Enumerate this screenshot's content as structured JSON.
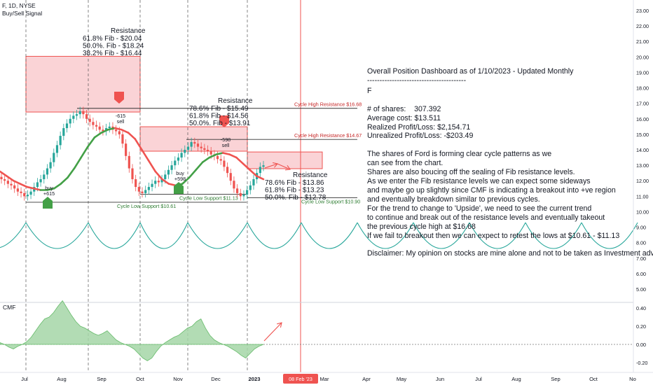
{
  "header": {
    "symbol": "F, 1D, NYSE",
    "indicator": "Buy/Sell Signal"
  },
  "cmf_label": "CMF",
  "colors": {
    "up": "#26a69a",
    "down": "#ef5350",
    "wave_up": "#43a047",
    "wave_down": "#ef5350",
    "zone": "#f8c4c8",
    "cycle": "#26a69a",
    "cmf_fill": "#a5d6a7",
    "today_line": "#ef5350"
  },
  "chart_data": [
    {
      "type": "candlestick",
      "y_axis_ticks": [
        "23.00",
        "22.00",
        "21.00",
        "20.00",
        "19.00",
        "18.00",
        "17.00",
        "16.00",
        "15.00",
        "14.00",
        "13.00",
        "12.00",
        "11.00",
        "10.00",
        "9.00",
        "8.00",
        "7.00",
        "6.00",
        "5.00"
      ],
      "ylim": [
        4.5,
        23.5
      ],
      "x_axis_ticks": [
        "Jul",
        "Aug",
        "Sep",
        "Oct",
        "Nov",
        "Dec",
        "2023",
        "Mar",
        "Apr",
        "May",
        "Jun",
        "Jul",
        "Aug",
        "Sep",
        "Oct",
        "No"
      ],
      "date_label": "08 Feb '23",
      "closes": [
        12.1,
        12.0,
        11.8,
        11.7,
        11.5,
        11.3,
        11.2,
        11.0,
        11.1,
        11.3,
        11.6,
        11.9,
        12.1,
        12.4,
        12.8,
        13.2,
        13.8,
        14.3,
        14.9,
        15.4,
        15.7,
        16.0,
        16.2,
        16.3,
        16.5,
        16.3,
        16.0,
        15.8,
        15.6,
        15.5,
        15.3,
        15.2,
        15.4,
        15.5,
        15.3,
        15.2,
        15.0,
        14.4,
        13.6,
        12.8,
        12.1,
        11.6,
        11.3,
        11.2,
        11.4,
        11.6,
        11.8,
        12.0,
        11.9,
        12.1,
        12.4,
        12.7,
        13.0,
        13.3,
        13.5,
        13.8,
        14.0,
        14.2,
        14.5,
        14.4,
        14.2,
        14.1,
        14.0,
        13.9,
        13.7,
        13.6,
        13.4,
        13.3,
        12.9,
        12.5,
        12.0,
        11.5,
        11.2,
        11.0,
        11.1,
        11.4,
        11.7,
        12.1,
        12.5,
        12.9,
        13.0
      ],
      "wave": [
        12.6,
        12.3,
        12.0,
        11.8,
        11.6,
        11.5,
        11.4,
        11.4,
        11.5,
        11.8,
        12.2,
        12.8,
        13.5,
        14.2,
        14.8,
        15.1,
        15.3,
        15.4,
        15.3,
        15.1,
        14.7,
        14.0,
        13.3,
        12.6,
        12.1,
        11.8,
        11.7,
        11.8,
        12.2,
        12.7,
        13.2,
        13.5,
        13.7,
        13.8,
        13.7,
        13.5,
        13.1,
        12.7,
        12.3,
        12.1
      ],
      "resistance_zones": [
        {
          "fibs": [
            "61.8%   Fib - $20.04",
            "50.0%.   Fib - $18.24",
            "38.2%   Fib - $16.44"
          ],
          "title": "Resistance",
          "top": 20.04,
          "bottom": 16.44
        },
        {
          "fibs": [
            "78.6%   Fib - $15.49",
            "61.8%   Fib - $14.56",
            "50.0%.   Fib - $13.91"
          ],
          "title": "Resistance",
          "top": 15.49,
          "bottom": 13.91
        },
        {
          "fibs": [
            "78.6%   Fib - $13.86",
            "61.8%   Fib - $13.23",
            "50.0%.   Fib - $12.78"
          ],
          "title": "Resistance",
          "top": 13.86,
          "bottom": 12.78
        }
      ],
      "levels": [
        {
          "label": "Cycle High Resistance $16.68",
          "value": 16.68
        },
        {
          "label": "Cycle High Resistance $14.67",
          "value": 14.67
        },
        {
          "label": "Cycle Low Support $10.61",
          "value": 10.61
        },
        {
          "label": "Cycle Low Support $11.13",
          "value": 11.13
        },
        {
          "label": "Cycle Low Support $10.90",
          "value": 10.9
        }
      ],
      "signals": [
        {
          "type": "buy",
          "text": [
            "buy",
            "+615"
          ]
        },
        {
          "type": "sell",
          "text": [
            "-615",
            "sell"
          ]
        },
        {
          "type": "buy",
          "text": [
            "buy",
            "+598"
          ]
        },
        {
          "type": "sell",
          "text": [
            "-598",
            "sell"
          ]
        }
      ]
    },
    {
      "type": "area",
      "name": "CMF",
      "y_axis_ticks": [
        "0.40",
        "0.20",
        "0.00",
        "-0.20"
      ],
      "ylim": [
        -0.28,
        0.52
      ],
      "values": [
        0.02,
        0.0,
        -0.03,
        -0.05,
        -0.02,
        0.0,
        0.03,
        0.08,
        0.15,
        0.22,
        0.28,
        0.3,
        0.35,
        0.42,
        0.48,
        0.4,
        0.32,
        0.25,
        0.2,
        0.18,
        0.15,
        0.12,
        0.1,
        0.12,
        0.15,
        0.1,
        0.05,
        0.02,
        0.0,
        -0.02,
        -0.05,
        -0.1,
        -0.15,
        -0.18,
        -0.15,
        -0.08,
        -0.02,
        0.02,
        0.05,
        0.08,
        0.1,
        0.14,
        0.18,
        0.2,
        0.25,
        0.28,
        0.18,
        0.1,
        0.05,
        0.02,
        0.0,
        -0.02,
        -0.05,
        -0.08,
        -0.12,
        -0.15,
        -0.1,
        -0.05,
        -0.02,
        0.0
      ]
    }
  ],
  "dashboard": {
    "title": "Overall Position Dashboard as of 1/10/2023 - Updated Monthly",
    "separator": "----------------------------------------",
    "ticker": "F",
    "shares": "# of shares:    307.392",
    "avg_cost": "Average cost: $13.511",
    "realized": "Realized Profit/Loss: $2,154.71",
    "unrealized": "Unrealized Profit/Loss: -$203.49",
    "lines": [
      "The shares of Ford is forming clear cycle patterns as we",
      "can see from the chart.",
      "Shares are also boucing off the sealing of Fib resistance levels.",
      "As we enter the Fib resistance levels we can expect some sideways",
      "and maybe go up slightly since CMF is indicating a breakout into +ve region",
      "and eventually breakdown similar to previous cycles.",
      "For the trend to change to 'Upside', we need to see the current trend",
      "to continue and break out of the resistance levels and eventually takeout",
      "the previous cycle high at $16.68",
      "If we fail to breakout then we can expect to retest the lows at $10.61 - $11.13"
    ],
    "disclaimer": "Disclaimer: My opinion on stocks are mine alone and not to be taken as Investment advice."
  }
}
